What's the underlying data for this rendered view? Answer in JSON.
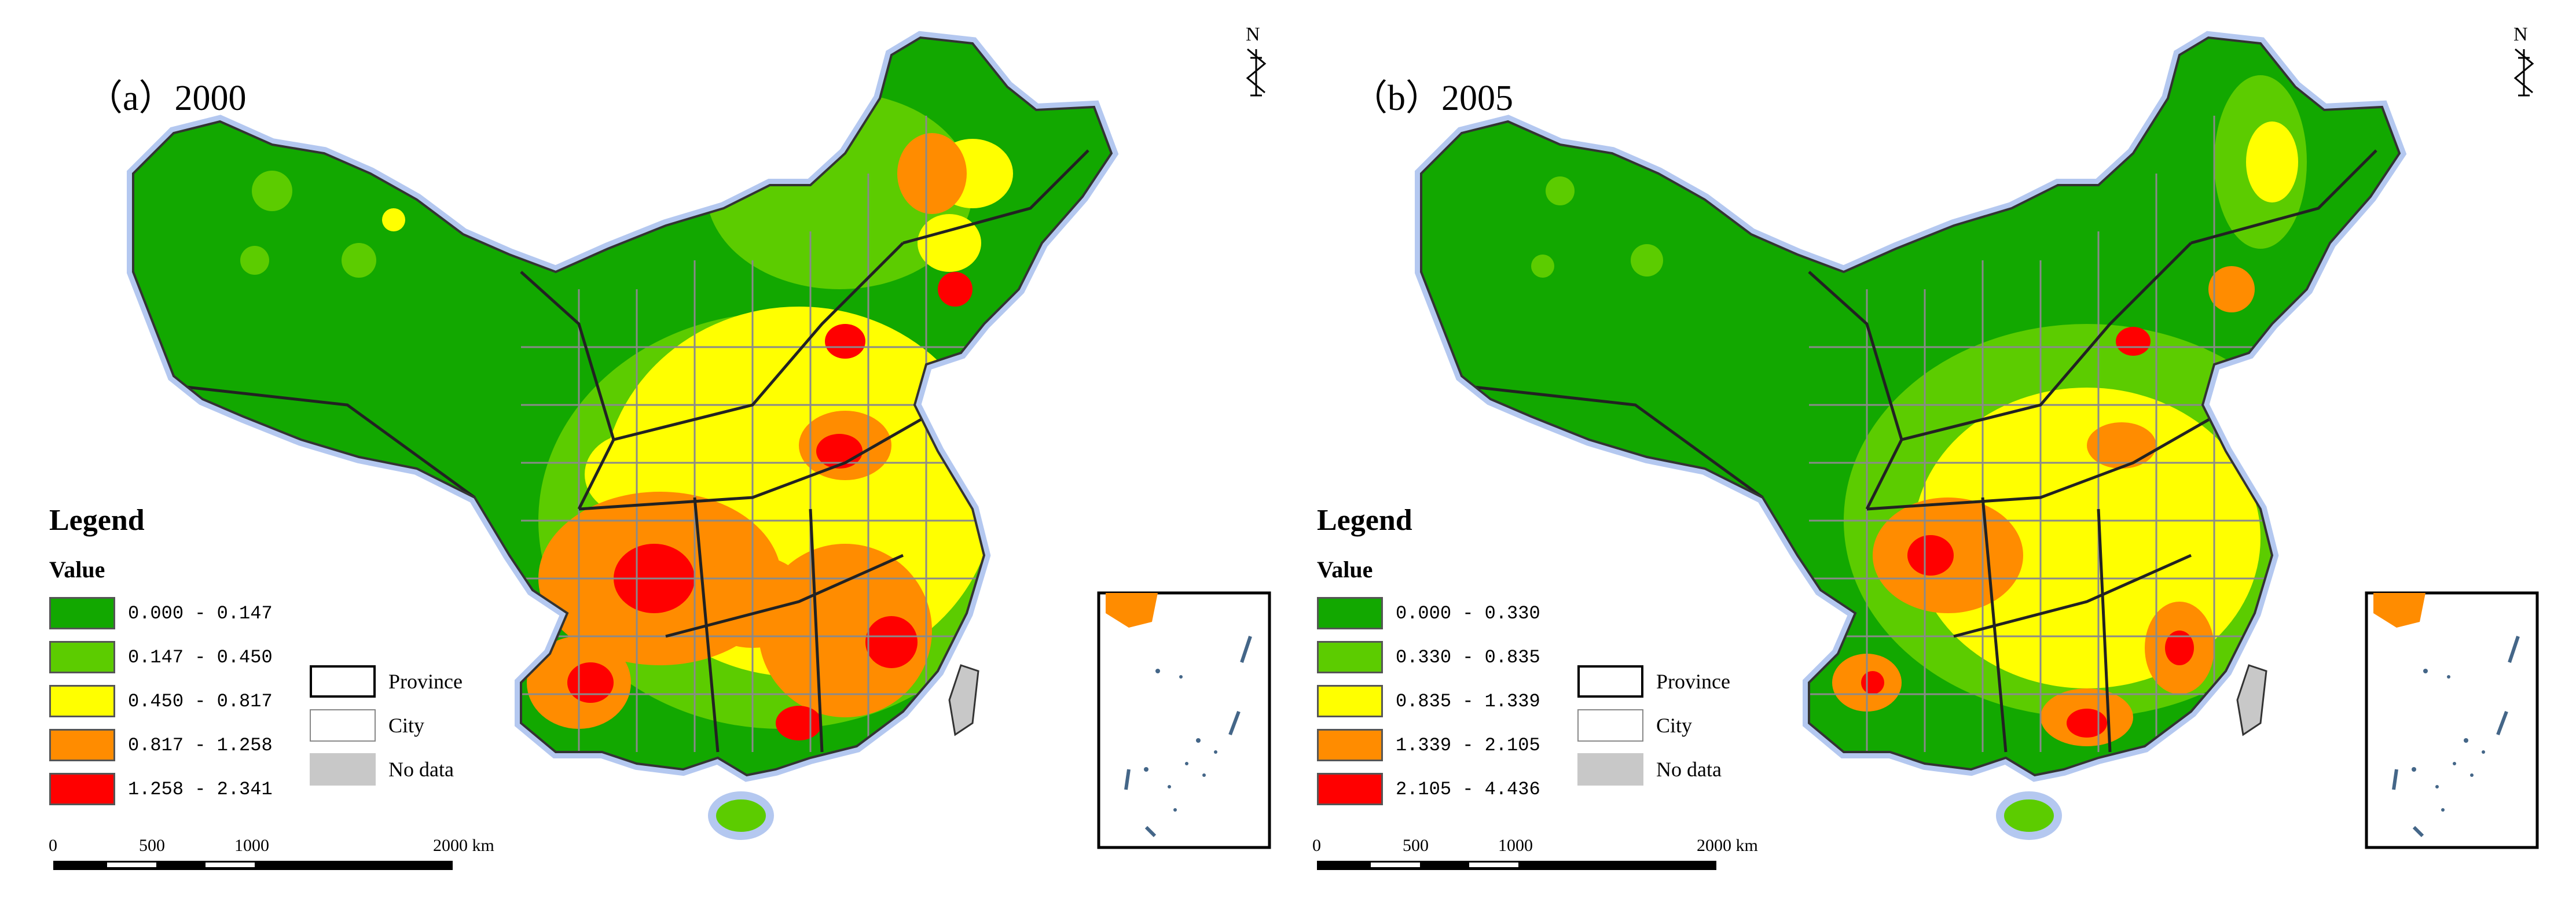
{
  "panels": [
    {
      "title": "（a）2000",
      "legend_title": "Legend",
      "value_heading": "Value",
      "classes": [
        {
          "label": "0.000 - 0.147",
          "color": "#12a800"
        },
        {
          "label": "0.147 - 0.450",
          "color": "#5ccc00"
        },
        {
          "label": "0.450 - 0.817",
          "color": "#ffff00"
        },
        {
          "label": "0.817 - 1.258",
          "color": "#ff8c00"
        },
        {
          "label": "1.258 - 2.341",
          "color": "#ff0000"
        }
      ]
    },
    {
      "title": "（b）2005",
      "legend_title": "Legend",
      "value_heading": "Value",
      "classes": [
        {
          "label": "0.000 - 0.330",
          "color": "#12a800"
        },
        {
          "label": "0.330 - 0.835",
          "color": "#5ccc00"
        },
        {
          "label": "0.835 - 1.339",
          "color": "#ffff00"
        },
        {
          "label": "1.339 - 2.105",
          "color": "#ff8c00"
        },
        {
          "label": "2.105 - 4.436",
          "color": "#ff0000"
        }
      ]
    }
  ],
  "boundary_legend": {
    "province": "Province",
    "city": "City",
    "no_data": "No data"
  },
  "scale_bar": {
    "ticks": [
      "0",
      "500",
      "1000",
      "2000 km"
    ]
  },
  "north_arrow": {
    "label": "N",
    "icon": "north-arrow-icon"
  },
  "colors": {
    "halo": "#b4c8f0",
    "province_line": "#222222",
    "city_line": "#8a8a8a",
    "no_data": "#c8c8c8"
  }
}
